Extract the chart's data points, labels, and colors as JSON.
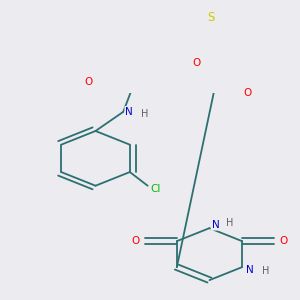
{
  "background_color": "#ebebf0",
  "bond_color": "#2d7070",
  "atom_colors": {
    "O": "#ff0000",
    "N": "#0000cc",
    "S": "#cccc00",
    "Cl": "#00bb00",
    "H": "#606060",
    "C": "#2d7070"
  },
  "figsize": [
    3.0,
    3.0
  ],
  "dpi": 100
}
